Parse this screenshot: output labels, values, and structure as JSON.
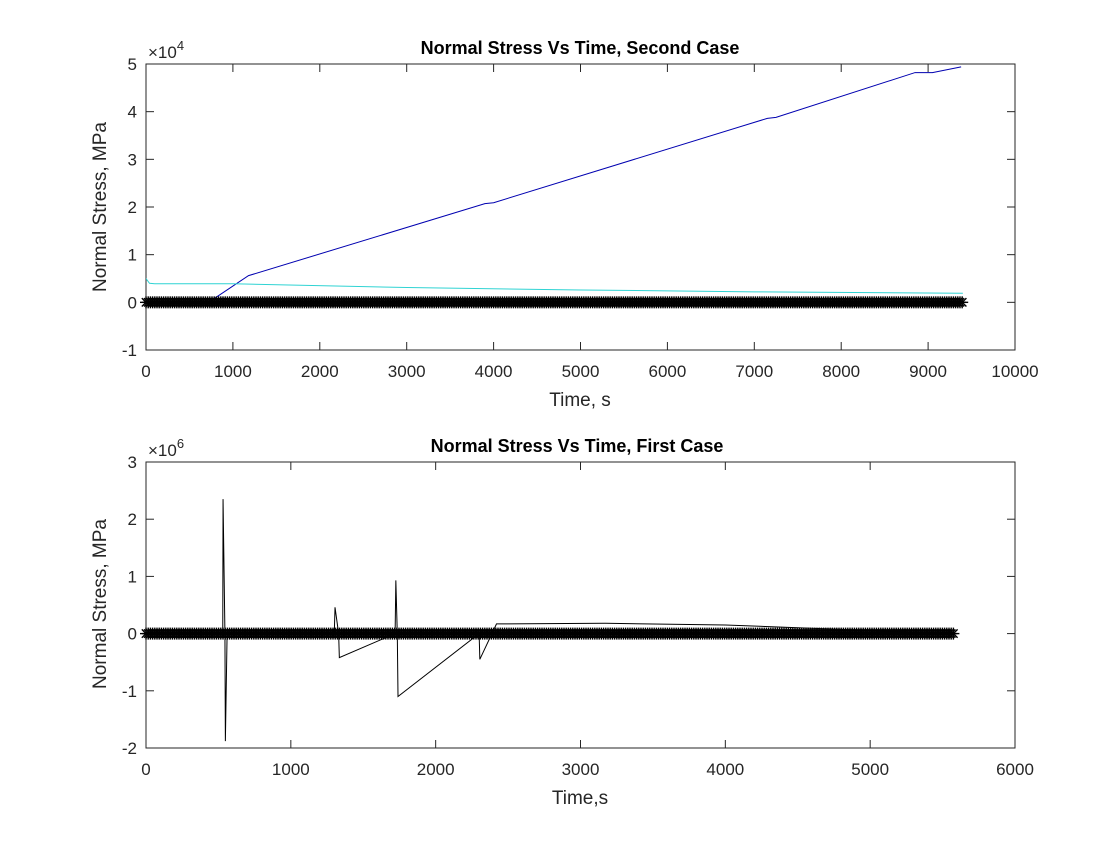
{
  "chart_data": [
    {
      "type": "line",
      "title": "Normal Stress Vs Time, Second Case",
      "xlabel": "Time, s",
      "ylabel": "Normal Stress, MPa",
      "xlim": [
        0,
        10000
      ],
      "ylim": [
        -1,
        5
      ],
      "y_exponent_label": "×10",
      "y_exponent": "4",
      "y_multiplier": 10000,
      "xticks": [
        "0",
        "1000",
        "2000",
        "3000",
        "4000",
        "5000",
        "6000",
        "7000",
        "8000",
        "9000",
        "10000"
      ],
      "yticks": [
        "-1",
        "0",
        "1",
        "2",
        "3",
        "4",
        "5"
      ],
      "grid": false,
      "series": [
        {
          "color": "#0000b0",
          "x": [
            720,
            1180,
            3900,
            4000,
            7150,
            7250,
            8850,
            9050,
            9380
          ],
          "y": [
            0.0,
            0.56,
            2.07,
            2.09,
            3.86,
            3.88,
            4.82,
            4.82,
            4.94
          ]
        },
        {
          "color": "#2fd3d3",
          "x": [
            0,
            40,
            100,
            1000,
            3000,
            5000,
            7000,
            9400
          ],
          "y": [
            0.5,
            0.4,
            0.39,
            0.39,
            0.31,
            0.26,
            0.22,
            0.19
          ]
        },
        {
          "color": "#000000",
          "marker": "asterisk",
          "x": [
            0,
            9400
          ],
          "y": [
            0,
            0
          ]
        }
      ]
    },
    {
      "type": "line",
      "title": "Normal Stress Vs Time, First Case",
      "xlabel": "Time,s",
      "ylabel": "Normal Stress, MPa",
      "xlim": [
        0,
        6000
      ],
      "ylim": [
        -2,
        3
      ],
      "y_exponent_label": "×10",
      "y_exponent": "6",
      "y_multiplier": 1000000,
      "xticks": [
        "0",
        "1000",
        "2000",
        "3000",
        "4000",
        "5000",
        "6000"
      ],
      "yticks": [
        "-2",
        "-1",
        "0",
        "1",
        "2",
        "3"
      ],
      "grid": false,
      "series": [
        {
          "color": "#000000",
          "x": [
            0,
            530,
            532,
            545,
            548,
            560,
            1300,
            1305,
            1330,
            1335,
            1720,
            1725,
            1735,
            1740,
            2300,
            2305,
            2420,
            3170,
            4000,
            5580
          ],
          "y": [
            0,
            0,
            2.35,
            0,
            -1.88,
            0,
            0,
            0.46,
            0,
            -0.42,
            0,
            0.93,
            0,
            -1.1,
            0,
            -0.45,
            0.17,
            0.18,
            0.15,
            0
          ]
        },
        {
          "color": "#1a7a1a",
          "x": [
            0,
            5580
          ],
          "y": [
            0.0,
            0.0
          ]
        },
        {
          "color": "#0000b0",
          "x": [
            0,
            5580
          ],
          "y": [
            0.02,
            0.02
          ]
        },
        {
          "color": "#000000",
          "marker": "asterisk",
          "x": [
            0,
            5580
          ],
          "y": [
            0,
            0
          ]
        }
      ]
    }
  ]
}
